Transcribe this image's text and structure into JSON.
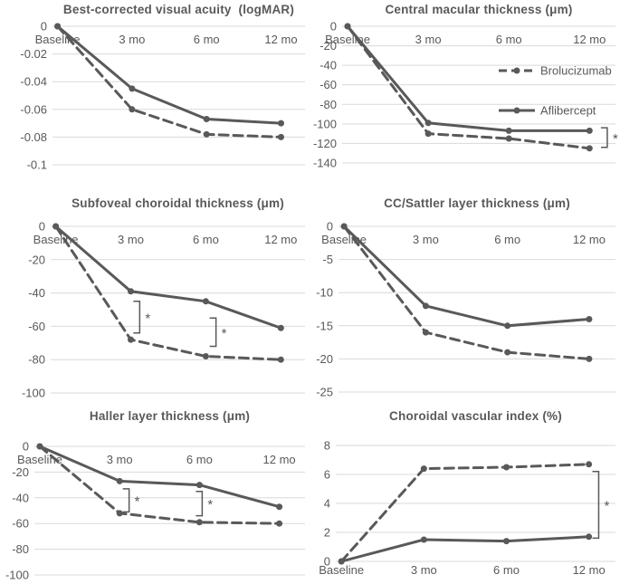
{
  "figure": {
    "type": "multi-panel-clinical-outcomes-figure",
    "panels": 6,
    "x_categories": [
      "Baseline",
      "3 mo",
      "6 mo",
      "12 mo"
    ]
  },
  "legend": {
    "position": "top-right-panel",
    "series": [
      {
        "name": "Brolucizumab",
        "style": "dashed"
      },
      {
        "name": "Aflibercept",
        "style": "solid"
      }
    ]
  },
  "colors": {
    "line": "#595959",
    "grid": "#d9d9d9",
    "title_text": "#595959",
    "tick_text": "#595959",
    "background": "#ffffff"
  },
  "chart_data": [
    {
      "type": "line",
      "title": "Best-corrected visual acuity  (logMAR)",
      "categories": [
        "Baseline",
        "3 mo",
        "6 mo",
        "12 mo"
      ],
      "category_labels_position": "top",
      "yticks": [
        0,
        -0.02,
        -0.04,
        -0.06,
        -0.08,
        -0.1
      ],
      "ylim": [
        -0.1,
        0
      ],
      "grid": true,
      "series": [
        {
          "name": "Brolucizumab",
          "style": "dashed",
          "values": [
            0,
            -0.06,
            -0.078,
            -0.08
          ]
        },
        {
          "name": "Aflibercept",
          "style": "solid",
          "values": [
            0,
            -0.045,
            -0.067,
            -0.07
          ]
        }
      ],
      "significance_brackets": [],
      "show_legend": false
    },
    {
      "type": "line",
      "title": "Central macular thickness (μm)",
      "categories": [
        "Baseline",
        "3 mo",
        "6 mo",
        "12 mo"
      ],
      "category_labels_position": "top",
      "yticks": [
        0,
        -20,
        -40,
        -60,
        -80,
        -100,
        -120,
        -140
      ],
      "ylim": [
        -140,
        0
      ],
      "grid": true,
      "series": [
        {
          "name": "Brolucizumab",
          "style": "dashed",
          "values": [
            0,
            -110,
            -115,
            -125
          ]
        },
        {
          "name": "Aflibercept",
          "style": "solid",
          "values": [
            0,
            -99,
            -107,
            -107
          ]
        }
      ],
      "significance_brackets": [
        {
          "x": 0.97,
          "y1": -104,
          "y2": -124,
          "label": "*"
        }
      ],
      "show_legend": true
    },
    {
      "type": "line",
      "title": "Subfoveal choroidal thickness (μm)",
      "categories": [
        "Baseline",
        "3 mo",
        "6 mo",
        "12 mo"
      ],
      "category_labels_position": "top",
      "yticks": [
        0,
        -20,
        -40,
        -60,
        -80,
        -100
      ],
      "ylim": [
        -100,
        0
      ],
      "grid": true,
      "series": [
        {
          "name": "Brolucizumab",
          "style": "dashed",
          "values": [
            0,
            -68,
            -78,
            -80
          ]
        },
        {
          "name": "Aflibercept",
          "style": "solid",
          "values": [
            0,
            -39,
            -45,
            -61
          ]
        }
      ],
      "significance_brackets": [
        {
          "x": 0.35,
          "y1": -45,
          "y2": -64,
          "label": "*"
        },
        {
          "x": 0.65,
          "y1": -55,
          "y2": -72,
          "label": "*"
        }
      ],
      "show_legend": false
    },
    {
      "type": "line",
      "title": "CC/Sattler layer thickness (μm)",
      "categories": [
        "Baseline",
        "3 mo",
        "6 mo",
        "12 mo"
      ],
      "category_labels_position": "top",
      "yticks": [
        0,
        -5,
        -10,
        -15,
        -20,
        -25
      ],
      "ylim": [
        -25,
        0
      ],
      "grid": true,
      "series": [
        {
          "name": "Brolucizumab",
          "style": "dashed",
          "values": [
            0,
            -16,
            -19,
            -20
          ]
        },
        {
          "name": "Aflibercept",
          "style": "solid",
          "values": [
            0,
            -12,
            -15,
            -14
          ]
        }
      ],
      "significance_brackets": [],
      "show_legend": false
    },
    {
      "type": "line",
      "title": "Haller layer thickness (μm)",
      "categories": [
        "Baseline",
        "3 mo",
        "6 mo",
        "12 mo"
      ],
      "category_labels_position": "top",
      "yticks": [
        0,
        -20,
        -40,
        -60,
        -80,
        -100
      ],
      "ylim": [
        -100,
        0
      ],
      "grid": true,
      "series": [
        {
          "name": "Brolucizumab",
          "style": "dashed",
          "values": [
            0,
            -52,
            -59,
            -60
          ]
        },
        {
          "name": "Aflibercept",
          "style": "solid",
          "values": [
            0,
            -27,
            -30,
            -47
          ]
        }
      ],
      "significance_brackets": [
        {
          "x": 0.35,
          "y1": -33,
          "y2": -51,
          "label": "*"
        },
        {
          "x": 0.62,
          "y1": -35,
          "y2": -54,
          "label": "*"
        }
      ],
      "show_legend": false
    },
    {
      "type": "line",
      "title": "Choroidal vascular index (%)",
      "categories": [
        "Baseline",
        "3 mo",
        "6 mo",
        "12 mo"
      ],
      "category_labels_position": "bottom",
      "yticks": [
        8,
        6,
        4,
        2,
        0
      ],
      "ylim": [
        0,
        8
      ],
      "grid": true,
      "series": [
        {
          "name": "Brolucizumab",
          "style": "dashed",
          "values": [
            0,
            6.4,
            6.5,
            6.7
          ]
        },
        {
          "name": "Aflibercept",
          "style": "solid",
          "values": [
            0,
            1.5,
            1.4,
            1.7
          ]
        }
      ],
      "significance_brackets": [
        {
          "x": 0.94,
          "y1": 6.2,
          "y2": 1.6,
          "label": "*"
        }
      ],
      "show_legend": false
    }
  ]
}
